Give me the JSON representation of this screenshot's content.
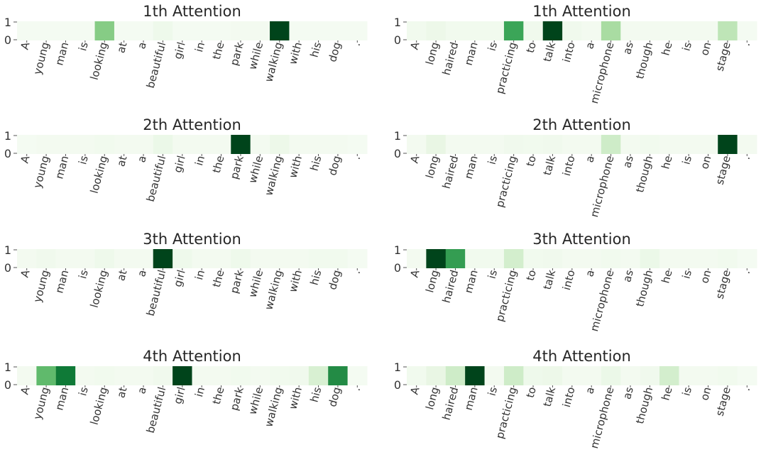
{
  "chart_data": [
    {
      "type": "heatmap",
      "title": "1th Attention",
      "categories": [
        "A",
        "young",
        "man",
        "is",
        "looking",
        "at",
        "a",
        "beautiful",
        "girl",
        "in",
        "the",
        "park",
        "while",
        "walking",
        "with",
        "his",
        "dog",
        "."
      ],
      "values": [
        0.02,
        0.02,
        0.02,
        0.02,
        0.45,
        0.02,
        0.02,
        0.06,
        0.02,
        0.02,
        0.02,
        0.03,
        0.03,
        1.0,
        0.02,
        0.02,
        0.02,
        0.02
      ],
      "yticks": [
        "1",
        "0"
      ],
      "colormap": "Greens"
    },
    {
      "type": "heatmap",
      "title": "1th Attention",
      "categories": [
        "A",
        "long",
        "haired",
        "man",
        "is",
        "practicing",
        "to",
        "talk",
        "into",
        "a",
        "microphone",
        "as",
        "though",
        "he",
        "is",
        "on",
        "stage",
        "."
      ],
      "values": [
        0.04,
        0.07,
        0.04,
        0.04,
        0.04,
        0.65,
        0.05,
        1.0,
        0.05,
        0.03,
        0.35,
        0.03,
        0.03,
        0.03,
        0.03,
        0.03,
        0.28,
        0.02
      ],
      "yticks": [
        "1",
        "0"
      ],
      "colormap": "Greens"
    },
    {
      "type": "heatmap",
      "title": "2th Attention",
      "categories": [
        "A",
        "young",
        "man",
        "is",
        "looking",
        "at",
        "a",
        "beautiful",
        "girl",
        "in",
        "the",
        "park",
        "while",
        "walking",
        "with",
        "his",
        "dog",
        "."
      ],
      "values": [
        0.02,
        0.03,
        0.03,
        0.03,
        0.04,
        0.03,
        0.03,
        0.08,
        0.03,
        0.03,
        0.03,
        1.0,
        0.03,
        0.07,
        0.03,
        0.03,
        0.03,
        0.02
      ],
      "yticks": [
        "1",
        "0"
      ],
      "colormap": "Greens"
    },
    {
      "type": "heatmap",
      "title": "2th Attention",
      "categories": [
        "A",
        "long",
        "haired",
        "man",
        "is",
        "practicing",
        "to",
        "talk",
        "into",
        "a",
        "microphone",
        "as",
        "though",
        "he",
        "is",
        "on",
        "stage",
        "."
      ],
      "values": [
        0.03,
        0.1,
        0.03,
        0.03,
        0.03,
        0.05,
        0.04,
        0.05,
        0.03,
        0.03,
        0.22,
        0.03,
        0.04,
        0.03,
        0.03,
        0.03,
        1.0,
        0.03
      ],
      "yticks": [
        "1",
        "0"
      ],
      "colormap": "Greens"
    },
    {
      "type": "heatmap",
      "title": "3th Attention",
      "categories": [
        "A",
        "young",
        "man",
        "is",
        "looking",
        "at",
        "a",
        "beautiful",
        "girl",
        "in",
        "the",
        "park",
        "while",
        "walking",
        "with",
        "his",
        "dog",
        "."
      ],
      "values": [
        0.03,
        0.05,
        0.03,
        0.03,
        0.06,
        0.03,
        0.03,
        1.0,
        0.06,
        0.03,
        0.03,
        0.06,
        0.03,
        0.03,
        0.03,
        0.04,
        0.04,
        0.02
      ],
      "yticks": [
        "1",
        "0"
      ],
      "colormap": "Greens"
    },
    {
      "type": "heatmap",
      "title": "3th Attention",
      "categories": [
        "A",
        "long",
        "haired",
        "man",
        "is",
        "practicing",
        "to",
        "talk",
        "into",
        "a",
        "microphone",
        "as",
        "though",
        "he",
        "is",
        "on",
        "stage",
        "."
      ],
      "values": [
        0.03,
        1.0,
        0.68,
        0.04,
        0.04,
        0.2,
        0.04,
        0.05,
        0.03,
        0.03,
        0.04,
        0.03,
        0.08,
        0.03,
        0.03,
        0.03,
        0.04,
        0.02
      ],
      "yticks": [
        "1",
        "0"
      ],
      "colormap": "Greens"
    },
    {
      "type": "heatmap",
      "title": "4th Attention",
      "categories": [
        "A",
        "young",
        "man",
        "is",
        "looking",
        "at",
        "a",
        "beautiful",
        "girl",
        "in",
        "the",
        "park",
        "while",
        "walking",
        "with",
        "his",
        "dog",
        "."
      ],
      "values": [
        0.03,
        0.55,
        0.82,
        0.03,
        0.04,
        0.03,
        0.03,
        0.05,
        1.0,
        0.03,
        0.03,
        0.04,
        0.03,
        0.04,
        0.05,
        0.18,
        0.75,
        0.02
      ],
      "yticks": [
        "1",
        "0"
      ],
      "colormap": "Greens"
    },
    {
      "type": "heatmap",
      "title": "4th Attention",
      "categories": [
        "A",
        "long",
        "haired",
        "man",
        "is",
        "practicing",
        "to",
        "talk",
        "into",
        "a",
        "microphone",
        "as",
        "though",
        "he",
        "is",
        "on",
        "stage",
        "."
      ],
      "values": [
        0.04,
        0.1,
        0.22,
        1.0,
        0.03,
        0.22,
        0.06,
        0.07,
        0.03,
        0.03,
        0.08,
        0.03,
        0.05,
        0.2,
        0.03,
        0.03,
        0.04,
        0.02
      ],
      "yticks": [
        "1",
        "0"
      ],
      "colormap": "Greens"
    }
  ]
}
